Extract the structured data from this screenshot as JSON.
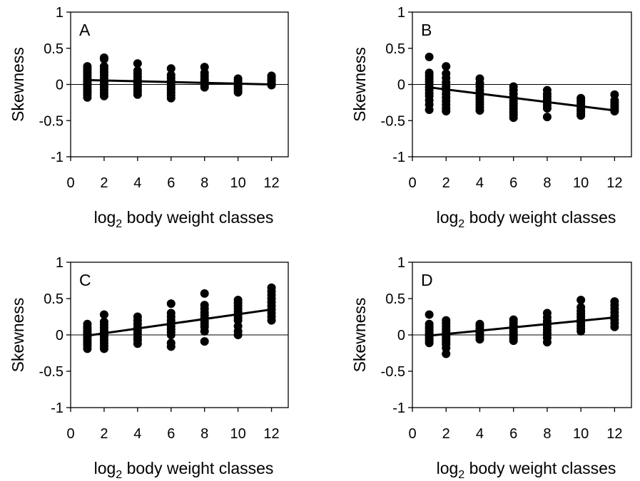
{
  "chart_data": [
    {
      "type": "scatter",
      "panel_label": "A",
      "xlabel_base": "log",
      "xlabel_sub": "2",
      "xlabel_rest": " body weight classes",
      "ylabel": "Skewness",
      "xlim": [
        0,
        13
      ],
      "ylim": [
        -1,
        1
      ],
      "xticks": [
        "0",
        "2",
        "4",
        "6",
        "8",
        "10",
        "12"
      ],
      "yticks": [
        "1",
        "0.5",
        "0",
        "-0.5",
        "-1"
      ],
      "reference_line_y": 0,
      "series": [
        {
          "x": 1,
          "y": [
            0.25,
            0.22,
            0.19,
            0.16,
            0.13,
            0.1,
            0.07,
            0.04,
            0.01,
            -0.02,
            -0.05,
            -0.08,
            -0.11,
            -0.14,
            -0.18
          ]
        },
        {
          "x": 2,
          "y": [
            0.37,
            0.35,
            0.25,
            0.21,
            0.17,
            0.13,
            0.09,
            0.05,
            0.02,
            -0.01,
            -0.04,
            -0.08,
            -0.12,
            -0.16
          ]
        },
        {
          "x": 4,
          "y": [
            0.29,
            0.19,
            0.15,
            0.11,
            0.07,
            0.03,
            0.0,
            -0.03,
            -0.07,
            -0.1,
            -0.14
          ]
        },
        {
          "x": 6,
          "y": [
            0.22,
            0.13,
            0.09,
            0.05,
            0.02,
            -0.01,
            -0.04,
            -0.07,
            -0.11,
            -0.15,
            -0.19
          ]
        },
        {
          "x": 8,
          "y": [
            0.24,
            0.16,
            0.12,
            0.08,
            0.05,
            0.02,
            -0.01,
            -0.04
          ]
        },
        {
          "x": 10,
          "y": [
            0.08,
            0.05,
            0.02,
            0.0,
            -0.02,
            -0.05,
            -0.08,
            -0.11
          ]
        },
        {
          "x": 12,
          "y": [
            0.12,
            0.09,
            0.07,
            0.05,
            0.03,
            0.01,
            -0.01
          ]
        }
      ],
      "trendline": {
        "x": [
          1,
          12
        ],
        "y": [
          0.06,
          0.0
        ]
      }
    },
    {
      "type": "scatter",
      "panel_label": "B",
      "xlabel_base": "log",
      "xlabel_sub": "2",
      "xlabel_rest": " body weight classes",
      "ylabel": "Skewness",
      "xlim": [
        0,
        13
      ],
      "ylim": [
        -1,
        1
      ],
      "xticks": [
        "0",
        "2",
        "4",
        "6",
        "8",
        "10",
        "12"
      ],
      "yticks": [
        "1",
        "0.5",
        "0",
        "-0.5",
        "-1"
      ],
      "reference_line_y": 0,
      "series": [
        {
          "x": 1,
          "y": [
            0.38,
            0.16,
            0.12,
            0.08,
            0.04,
            0.0,
            -0.04,
            -0.08,
            -0.12,
            -0.16,
            -0.22,
            -0.28,
            -0.35
          ]
        },
        {
          "x": 2,
          "y": [
            0.25,
            0.15,
            0.09,
            0.03,
            -0.03,
            -0.08,
            -0.13,
            -0.18,
            -0.23,
            -0.28,
            -0.33,
            -0.37
          ]
        },
        {
          "x": 4,
          "y": [
            0.08,
            0.02,
            -0.03,
            -0.08,
            -0.12,
            -0.16,
            -0.2,
            -0.24,
            -0.28,
            -0.32,
            -0.36
          ]
        },
        {
          "x": 6,
          "y": [
            -0.03,
            -0.08,
            -0.13,
            -0.18,
            -0.22,
            -0.26,
            -0.3,
            -0.34,
            -0.38,
            -0.42,
            -0.46
          ]
        },
        {
          "x": 8,
          "y": [
            -0.08,
            -0.13,
            -0.17,
            -0.21,
            -0.25,
            -0.29,
            -0.33,
            -0.45
          ]
        },
        {
          "x": 10,
          "y": [
            -0.19,
            -0.22,
            -0.25,
            -0.28,
            -0.31,
            -0.34,
            -0.37,
            -0.4,
            -0.43
          ]
        },
        {
          "x": 12,
          "y": [
            -0.14,
            -0.22,
            -0.25,
            -0.28,
            -0.31,
            -0.34,
            -0.37
          ]
        }
      ],
      "trendline": {
        "x": [
          1,
          12
        ],
        "y": [
          -0.04,
          -0.36
        ]
      }
    },
    {
      "type": "scatter",
      "panel_label": "C",
      "xlabel_base": "log",
      "xlabel_sub": "2",
      "xlabel_rest": " body weight classes",
      "ylabel": "Skewness",
      "xlim": [
        0,
        13
      ],
      "ylim": [
        -1,
        1
      ],
      "xticks": [
        "0",
        "2",
        "4",
        "6",
        "8",
        "10",
        "12"
      ],
      "yticks": [
        "1",
        "0.5",
        "0",
        "-0.5",
        "-1"
      ],
      "reference_line_y": 0,
      "series": [
        {
          "x": 1,
          "y": [
            0.15,
            0.11,
            0.08,
            0.05,
            0.02,
            0.0,
            -0.03,
            -0.06,
            -0.09,
            -0.12,
            -0.15,
            -0.19
          ]
        },
        {
          "x": 2,
          "y": [
            0.28,
            0.18,
            0.14,
            0.1,
            0.06,
            0.03,
            0.0,
            -0.03,
            -0.07,
            -0.11,
            -0.15,
            -0.19
          ]
        },
        {
          "x": 4,
          "y": [
            0.25,
            0.2,
            0.15,
            0.1,
            0.06,
            0.02,
            -0.03,
            -0.07,
            -0.12
          ]
        },
        {
          "x": 6,
          "y": [
            0.43,
            0.3,
            0.25,
            0.2,
            0.16,
            0.12,
            0.08,
            0.04,
            0.0,
            -0.11,
            -0.16
          ]
        },
        {
          "x": 8,
          "y": [
            0.57,
            0.41,
            0.36,
            0.31,
            0.27,
            0.23,
            0.19,
            0.15,
            0.11,
            0.05,
            -0.09
          ]
        },
        {
          "x": 10,
          "y": [
            0.48,
            0.44,
            0.4,
            0.36,
            0.32,
            0.28,
            0.24,
            0.2,
            0.12,
            0.05,
            0.0
          ]
        },
        {
          "x": 12,
          "y": [
            0.65,
            0.6,
            0.55,
            0.5,
            0.45,
            0.4,
            0.35,
            0.3,
            0.25,
            0.2
          ]
        }
      ],
      "trendline": {
        "x": [
          1,
          12
        ],
        "y": [
          -0.01,
          0.35
        ]
      }
    },
    {
      "type": "scatter",
      "panel_label": "D",
      "xlabel_base": "log",
      "xlabel_sub": "2",
      "xlabel_rest": " body weight classes",
      "ylabel": "Skewness",
      "xlim": [
        0,
        13
      ],
      "ylim": [
        -1,
        1
      ],
      "xticks": [
        "0",
        "2",
        "4",
        "6",
        "8",
        "10",
        "12"
      ],
      "yticks": [
        "1",
        "0.5",
        "0",
        "-0.5",
        "-1"
      ],
      "reference_line_y": 0,
      "series": [
        {
          "x": 1,
          "y": [
            0.28,
            0.15,
            0.11,
            0.08,
            0.05,
            0.02,
            0.0,
            -0.02,
            -0.05,
            -0.08,
            -0.11
          ]
        },
        {
          "x": 2,
          "y": [
            0.2,
            0.16,
            0.12,
            0.08,
            0.05,
            0.02,
            -0.01,
            -0.04,
            -0.07,
            -0.1,
            -0.13,
            -0.18,
            -0.26
          ]
        },
        {
          "x": 4,
          "y": [
            0.15,
            0.12,
            0.09,
            0.06,
            0.03,
            0.0,
            -0.03,
            -0.06
          ]
        },
        {
          "x": 6,
          "y": [
            0.21,
            0.17,
            0.13,
            0.1,
            0.07,
            0.04,
            0.01,
            -0.02,
            -0.05,
            -0.08
          ]
        },
        {
          "x": 8,
          "y": [
            0.3,
            0.24,
            0.19,
            0.15,
            0.11,
            0.07,
            0.03,
            0.0,
            -0.04,
            -0.1
          ]
        },
        {
          "x": 10,
          "y": [
            0.48,
            0.38,
            0.33,
            0.29,
            0.25,
            0.21,
            0.17,
            0.13,
            0.09,
            0.05
          ]
        },
        {
          "x": 12,
          "y": [
            0.46,
            0.41,
            0.36,
            0.31,
            0.26,
            0.21,
            0.16,
            0.11
          ]
        }
      ],
      "trendline": {
        "x": [
          1,
          12
        ],
        "y": [
          -0.01,
          0.24
        ]
      }
    }
  ]
}
